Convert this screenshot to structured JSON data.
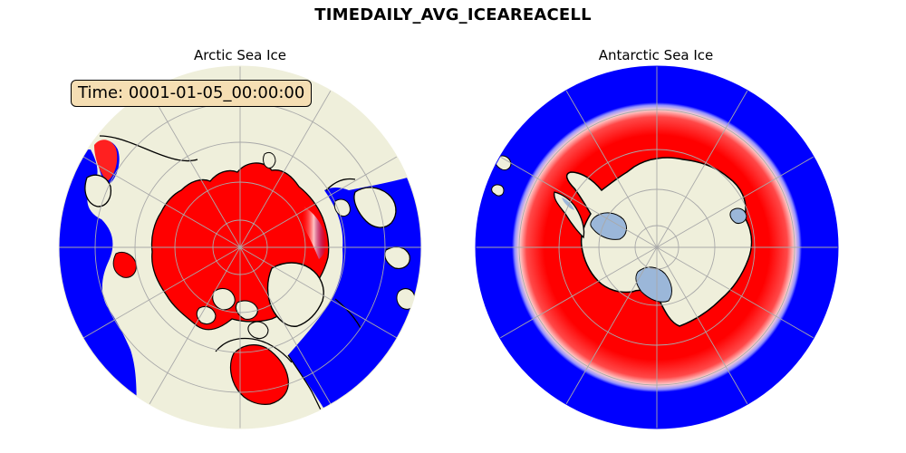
{
  "figure": {
    "title": "TIMEDAILY_AVG_ICEAREACELL",
    "time_label": "Time: 0001-01-05_00:00:00"
  },
  "panels": [
    {
      "id": "arctic",
      "title": "Arctic Sea Ice"
    },
    {
      "id": "antarctic",
      "title": "Antarctic Sea Ice"
    }
  ],
  "colors": {
    "ocean_open": "#0000ff",
    "sea_ice": "#ff0000",
    "land": "#efefdb",
    "ice_shelf": "#9bb7d9",
    "coastline": "#000000",
    "graticule": "#a9a9a9",
    "label_box": "#f5deb3"
  }
}
